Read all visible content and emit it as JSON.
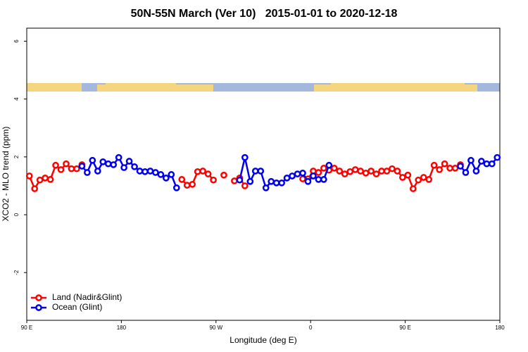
{
  "chart_data": {
    "type": "line",
    "title": "50N-55N March (Ver 10)   2015-01-01 to 2020-12-18",
    "x_label": "Longitude (deg E)",
    "y_label": "XCO2 - MLO trend (ppm)",
    "xlim": [
      90,
      540
    ],
    "xticks": [
      {
        "value": 90,
        "label": "90 E"
      },
      180,
      {
        "value": 270,
        "label": "90 W"
      },
      {
        "value": 360,
        "label": "0"
      },
      {
        "value": 450,
        "label": "90 E"
      },
      {
        "value": 540,
        "label": "180"
      }
    ],
    "ylim": [
      -3.65,
      6.45
    ],
    "yticks": [
      -2,
      0,
      2,
      4,
      6
    ],
    "legend": "bottom-left",
    "x": [
      92.5,
      97.5,
      102.5,
      107.5,
      112.5,
      117.5,
      122.5,
      127.5,
      132.5,
      137.5,
      142.5,
      147.5,
      152.5,
      157.5,
      162.5,
      167.5,
      172.5,
      177.5,
      182.5,
      187.5,
      192.5,
      197.5,
      202.5,
      207.5,
      212.5,
      217.5,
      222.5,
      227.5,
      232.5,
      237.5,
      242.5,
      247.5,
      252.5,
      257.5,
      262.5,
      267.5,
      272.5,
      277.5,
      282.5,
      287.5,
      292.5,
      297.5,
      302.5,
      307.5,
      312.5,
      317.5,
      322.5,
      327.5,
      332.5,
      337.5,
      342.5,
      347.5,
      352.5,
      357.5,
      362.5,
      367.5,
      372.5,
      377.5,
      382.5,
      387.5,
      392.5,
      397.5,
      402.5,
      407.5,
      412.5,
      417.5,
      422.5,
      427.5,
      432.5,
      437.5,
      442.5,
      447.5,
      452.5,
      457.5,
      462.5,
      467.5,
      472.5,
      477.5,
      482.5,
      487.5,
      492.5,
      497.5,
      502.5,
      507.5,
      512.5,
      517.5,
      522.5,
      527.5,
      532.5,
      537.5
    ],
    "series": [
      {
        "name": "Land (Nadir&Glint)",
        "color": "#ff0000",
        "values": [
          1.34,
          0.9,
          1.2,
          1.27,
          1.22,
          1.71,
          1.56,
          1.76,
          1.59,
          1.59,
          1.73,
          null,
          null,
          null,
          null,
          null,
          null,
          null,
          null,
          null,
          null,
          null,
          null,
          null,
          null,
          null,
          null,
          null,
          null,
          1.22,
          1.02,
          1.05,
          1.49,
          1.51,
          1.41,
          1.2,
          null,
          1.37,
          null,
          1.17,
          1.27,
          1.0,
          null,
          null,
          null,
          null,
          null,
          null,
          null,
          null,
          null,
          null,
          1.24,
          1.24,
          1.51,
          1.46,
          1.61,
          1.54,
          1.61,
          1.51,
          1.41,
          1.49,
          1.56,
          1.51,
          1.44,
          1.51,
          1.41,
          1.51,
          1.51,
          1.59,
          1.51,
          1.29,
          1.37,
          0.9,
          1.2,
          1.29,
          1.22,
          1.71,
          1.56,
          1.76,
          1.61,
          1.61,
          1.73,
          null,
          null,
          null,
          null,
          null,
          null,
          null
        ]
      },
      {
        "name": "Ocean (Glint)",
        "color": "#0000ee",
        "values": [
          null,
          null,
          null,
          null,
          null,
          null,
          null,
          null,
          null,
          null,
          1.68,
          1.46,
          1.88,
          1.51,
          1.83,
          1.76,
          1.73,
          1.98,
          1.63,
          1.85,
          1.66,
          1.51,
          1.49,
          1.51,
          1.46,
          1.39,
          1.27,
          1.39,
          0.93,
          null,
          null,
          null,
          null,
          null,
          null,
          null,
          null,
          null,
          null,
          null,
          1.2,
          1.98,
          1.15,
          1.51,
          1.51,
          0.93,
          1.15,
          1.1,
          1.1,
          1.27,
          1.34,
          1.41,
          1.44,
          1.15,
          1.34,
          1.22,
          1.22,
          1.71,
          null,
          null,
          null,
          null,
          null,
          null,
          null,
          null,
          null,
          null,
          null,
          null,
          null,
          null,
          null,
          null,
          null,
          null,
          null,
          null,
          null,
          null,
          null,
          null,
          1.68,
          1.46,
          1.88,
          1.51,
          1.85,
          1.76,
          1.76,
          1.98
        ]
      }
    ]
  }
}
